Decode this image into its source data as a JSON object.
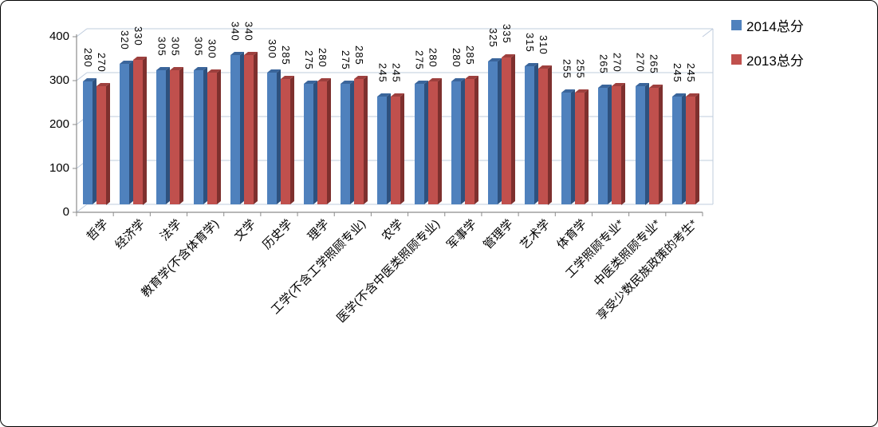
{
  "chart_data": {
    "type": "bar",
    "effect": "3d-clustered-column",
    "title": "",
    "xlabel": "",
    "ylabel": "",
    "ylim": [
      0,
      400
    ],
    "yticks": [
      0,
      100,
      200,
      300,
      400
    ],
    "grid": true,
    "data_labels": true,
    "data_label_rotation": "vertical",
    "legend_position": "top-right",
    "categories": [
      "哲学",
      "经济学",
      "法学",
      "教育学(不含体育学)",
      "文学",
      "历史学",
      "理学",
      "工学(不含工学照顾专业)",
      "农学",
      "医学(不含中医类照顾专业)",
      "军事学",
      "管理学",
      "艺术学",
      "体育学",
      "工学照顾专业*",
      "中医类照顾专业*",
      "享受少数民族政策的考生*"
    ],
    "series": [
      {
        "name": "2014总分",
        "color": "#4F81BD",
        "side_color": "#2E517E",
        "top_color": "#3A659B",
        "values": [
          280,
          320,
          305,
          305,
          340,
          300,
          275,
          275,
          245,
          275,
          280,
          325,
          315,
          255,
          265,
          270,
          245
        ]
      },
      {
        "name": "2013总分",
        "color": "#C0504D",
        "side_color": "#7E302E",
        "top_color": "#9E403E",
        "values": [
          270,
          330,
          305,
          300,
          340,
          285,
          280,
          285,
          245,
          280,
          285,
          335,
          310,
          255,
          270,
          265,
          245
        ]
      }
    ]
  },
  "colors": {
    "gridline": "#BFCCDE",
    "axis": "#8C8C8C",
    "background": "#FFFFFF",
    "label_text": "#000000"
  }
}
